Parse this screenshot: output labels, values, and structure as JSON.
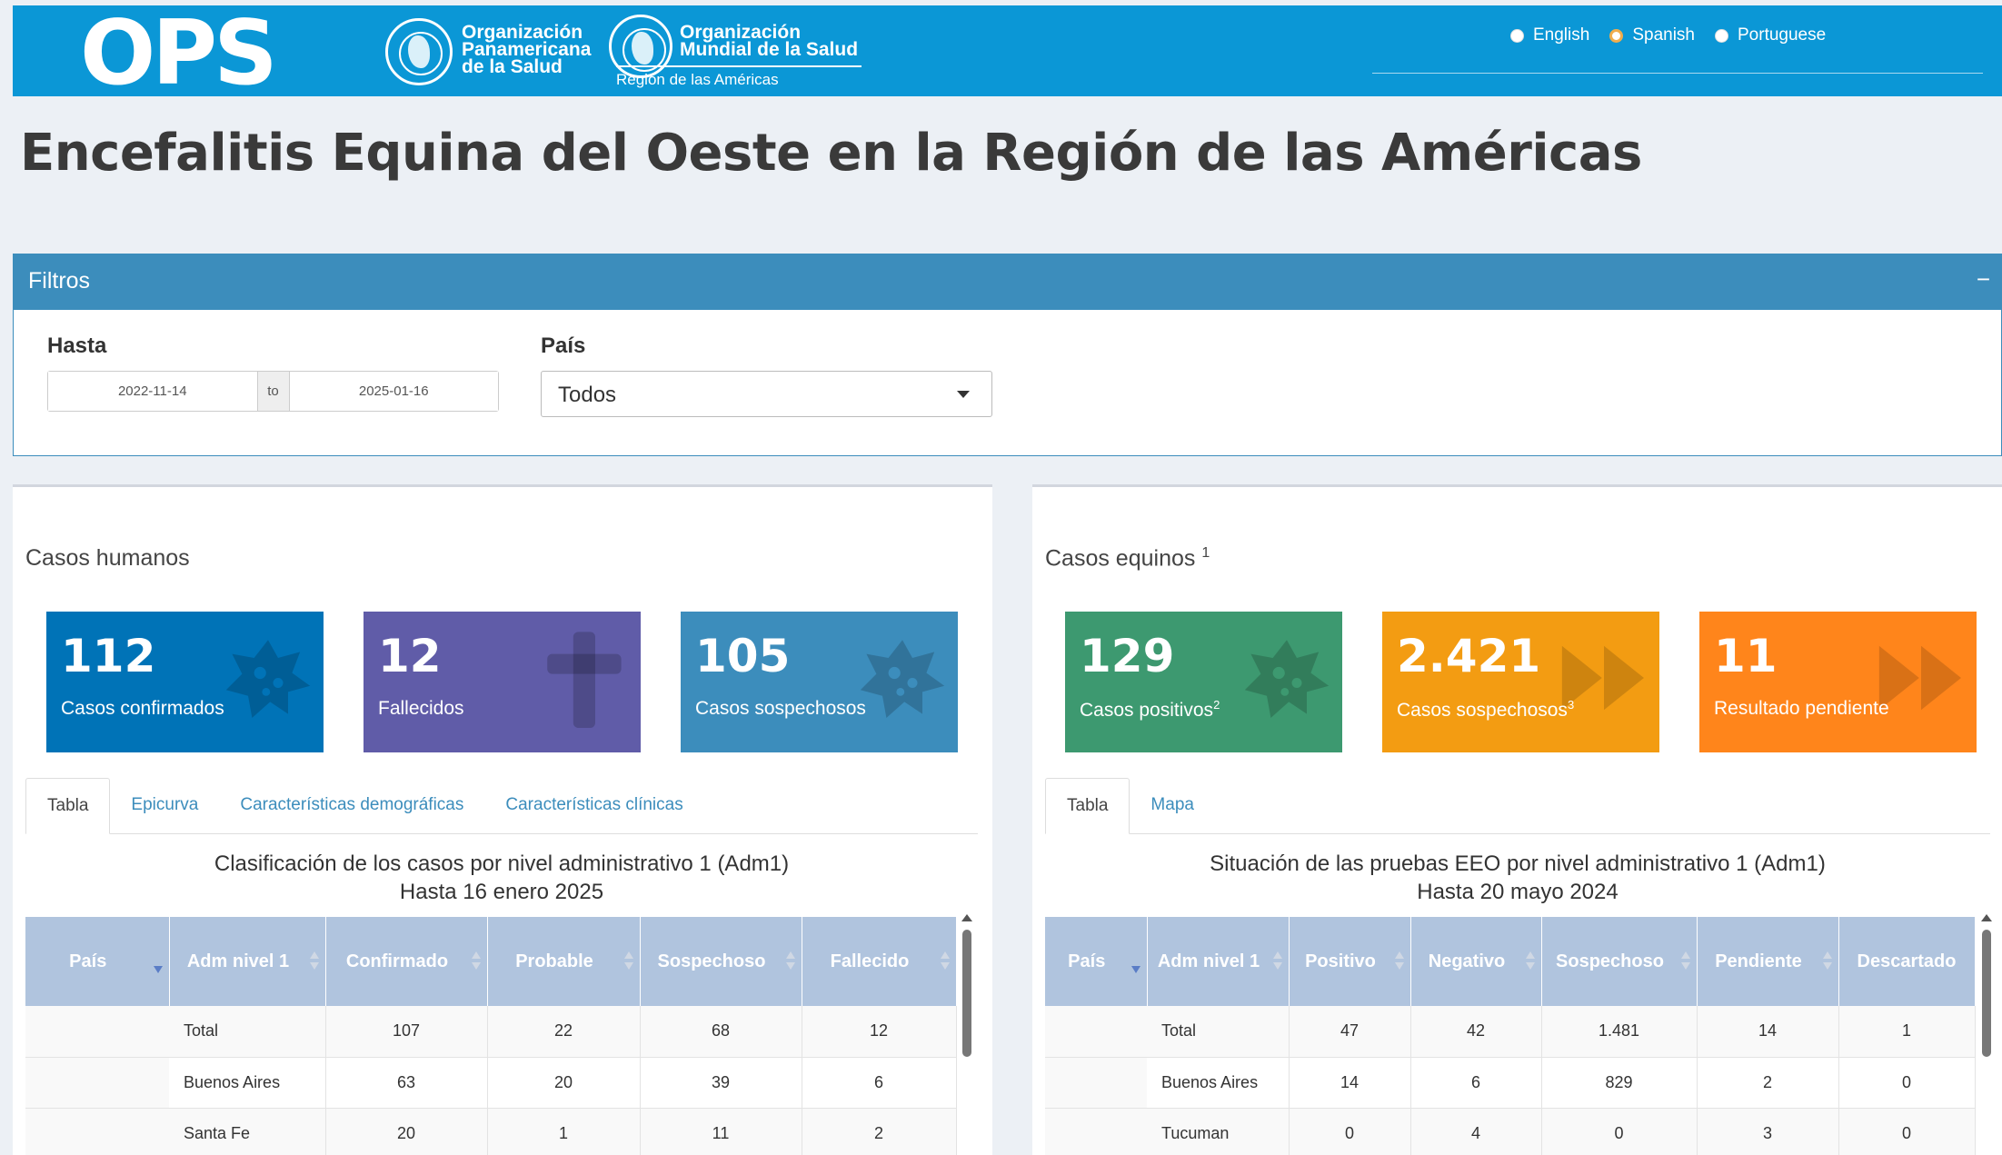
{
  "header": {
    "logo_text": "OPS",
    "paho_name": [
      "Organización",
      "Panamericana",
      "de la Salud"
    ],
    "who_name": [
      "Organización",
      "Mundial de la Salud"
    ],
    "region": "Región de las Américas",
    "languages": [
      {
        "label": "English",
        "selected": false
      },
      {
        "label": "Spanish",
        "selected": true
      },
      {
        "label": "Portuguese",
        "selected": false
      }
    ]
  },
  "page_title": "Encefalitis Equina del Oeste en la Región de las Américas",
  "filters": {
    "title": "Filtros",
    "collapse_symbol": "−",
    "date_label": "Hasta",
    "date_from": "2022-11-14",
    "date_sep": "to",
    "date_to": "2025-01-16",
    "country_label": "País",
    "country_value": "Todos"
  },
  "human": {
    "title": "Casos humanos",
    "boxes": [
      {
        "value": "112",
        "label": "Casos confirmados",
        "color": "#0073b7",
        "icon": "virus-icon"
      },
      {
        "value": "12",
        "label": "Fallecidos",
        "color": "#605ca8",
        "icon": "cross-icon"
      },
      {
        "value": "105",
        "label": "Casos sospechosos",
        "color": "#3c8dbc",
        "icon": "virus-icon"
      }
    ],
    "tabs": [
      "Tabla",
      "Epicurva",
      "Características demográficas",
      "Características clínicas"
    ],
    "caption_line1": "Clasificación de los casos por nivel administrativo 1 (Adm1)",
    "caption_line2": "Hasta 16 enero 2025",
    "columns": [
      "País",
      "Adm nivel 1",
      "Confirmado",
      "Probable",
      "Sospechoso",
      "Fallecido"
    ],
    "rows": [
      [
        "",
        "Total",
        "107",
        "22",
        "68",
        "12"
      ],
      [
        "",
        "Buenos Aires",
        "63",
        "20",
        "39",
        "6"
      ],
      [
        "",
        "Santa Fe",
        "20",
        "1",
        "11",
        "2"
      ]
    ]
  },
  "equine": {
    "title": "Casos equinos",
    "title_sup": "1",
    "boxes": [
      {
        "value": "129",
        "label": "Casos positivos",
        "sup": "2",
        "color": "#3d9970",
        "icon": "virus-icon"
      },
      {
        "value": "2.421",
        "label": "Casos sospechosos",
        "sup": "3",
        "color": "#f39c12",
        "icon": "fast-forward-icon"
      },
      {
        "value": "11",
        "label": "Resultado pendiente",
        "sup": "",
        "color": "#ff851b",
        "icon": "fast-forward-icon"
      }
    ],
    "tabs": [
      "Tabla",
      "Mapa"
    ],
    "caption_line1": "Situación de las pruebas EEO por nivel administrativo 1 (Adm1)",
    "caption_line2": "Hasta 20 mayo 2024",
    "columns": [
      "País",
      "Adm nivel 1",
      "Positivo",
      "Negativo",
      "Sospechoso",
      "Pendiente",
      "Descartado"
    ],
    "rows": [
      [
        "",
        "Total",
        "47",
        "42",
        "1.481",
        "14",
        "1"
      ],
      [
        "",
        "Buenos Aires",
        "14",
        "6",
        "829",
        "2",
        "0"
      ],
      [
        "",
        "Tucuman",
        "0",
        "4",
        "0",
        "3",
        "0"
      ]
    ]
  }
}
